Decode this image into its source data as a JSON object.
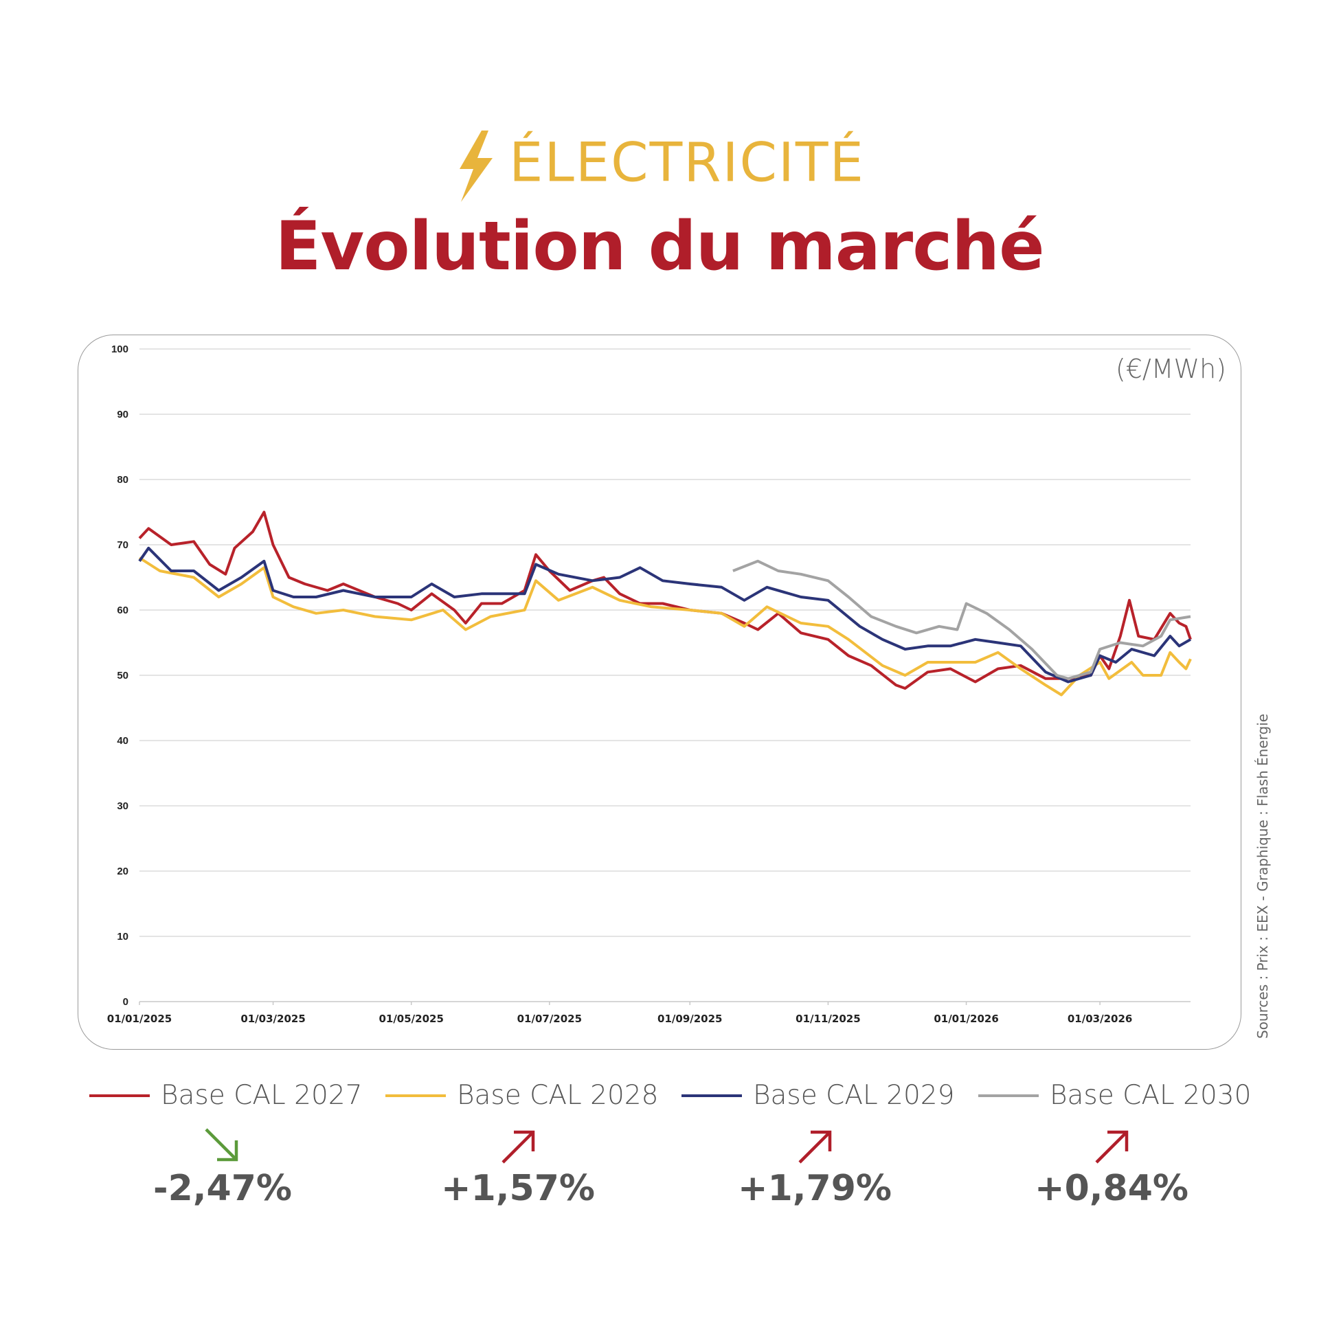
{
  "header": {
    "kicker": "ÉLECTRICITÉ",
    "title": "Évolution du marché",
    "kicker_icon": "lightning-bolt-icon"
  },
  "colors": {
    "title": "#b01e2a",
    "kicker": "#e8b43c",
    "down": "#5b9a3a",
    "up": "#b01e2a"
  },
  "source": "Sources : Prix : EEX - Graphique : Flash Énergie",
  "changes": [
    {
      "series": "Base CAL 2027",
      "value": "-2,47%",
      "direction": "down"
    },
    {
      "series": "Base CAL 2028",
      "value": "+1,57%",
      "direction": "up"
    },
    {
      "series": "Base CAL 2029",
      "value": "+1,79%",
      "direction": "up"
    },
    {
      "series": "Base CAL 2030",
      "value": "+0,84%",
      "direction": "up"
    }
  ],
  "chart_data": {
    "type": "line",
    "ylabel": "(€/MWh)",
    "ylim": [
      0,
      100
    ],
    "yticks": [
      "0",
      "10",
      "20",
      "30",
      "40",
      "50",
      "60",
      "70",
      "80",
      "90",
      "100"
    ],
    "xlim": [
      "2025-01-01",
      "2026-04-10"
    ],
    "xticks": [
      {
        "date": "2025-01-01",
        "label": "01/01/2025"
      },
      {
        "date": "2025-03-01",
        "label": "01/03/2025"
      },
      {
        "date": "2025-05-01",
        "label": "01/05/2025"
      },
      {
        "date": "2025-07-01",
        "label": "01/07/2025"
      },
      {
        "date": "2025-09-01",
        "label": "01/09/2025"
      },
      {
        "date": "2025-11-01",
        "label": "01/11/2025"
      },
      {
        "date": "2026-01-01",
        "label": "01/01/2026"
      },
      {
        "date": "2026-03-01",
        "label": "01/03/2026"
      }
    ],
    "grid": true,
    "legend": "bottom",
    "series": [
      {
        "name": "Base CAL 2027",
        "color": "#b8222a",
        "points": [
          [
            "2025-01-01",
            71
          ],
          [
            "2025-01-05",
            72.5
          ],
          [
            "2025-01-15",
            70
          ],
          [
            "2025-01-25",
            70.5
          ],
          [
            "2025-02-01",
            67
          ],
          [
            "2025-02-08",
            65.5
          ],
          [
            "2025-02-12",
            69.5
          ],
          [
            "2025-02-20",
            72
          ],
          [
            "2025-02-25",
            75
          ],
          [
            "2025-03-01",
            70
          ],
          [
            "2025-03-08",
            65
          ],
          [
            "2025-03-15",
            64
          ],
          [
            "2025-03-25",
            63
          ],
          [
            "2025-04-01",
            64
          ],
          [
            "2025-04-15",
            62
          ],
          [
            "2025-04-25",
            61
          ],
          [
            "2025-05-01",
            60
          ],
          [
            "2025-05-10",
            62.5
          ],
          [
            "2025-05-20",
            60
          ],
          [
            "2025-05-25",
            58
          ],
          [
            "2025-06-01",
            61
          ],
          [
            "2025-06-10",
            61
          ],
          [
            "2025-06-20",
            63
          ],
          [
            "2025-06-25",
            68.5
          ],
          [
            "2025-07-01",
            66
          ],
          [
            "2025-07-10",
            63
          ],
          [
            "2025-07-20",
            64.5
          ],
          [
            "2025-07-25",
            65
          ],
          [
            "2025-08-01",
            62.5
          ],
          [
            "2025-08-10",
            61
          ],
          [
            "2025-08-20",
            61
          ],
          [
            "2025-09-01",
            60
          ],
          [
            "2025-09-15",
            59.5
          ],
          [
            "2025-09-25",
            58
          ],
          [
            "2025-10-01",
            57
          ],
          [
            "2025-10-10",
            59.5
          ],
          [
            "2025-10-20",
            56.5
          ],
          [
            "2025-11-01",
            55.5
          ],
          [
            "2025-11-10",
            53
          ],
          [
            "2025-11-20",
            51.5
          ],
          [
            "2025-12-01",
            48.5
          ],
          [
            "2025-12-05",
            48
          ],
          [
            "2025-12-15",
            50.5
          ],
          [
            "2025-12-25",
            51
          ],
          [
            "2026-01-05",
            49
          ],
          [
            "2026-01-15",
            51
          ],
          [
            "2026-01-25",
            51.5
          ],
          [
            "2026-02-05",
            49.5
          ],
          [
            "2026-02-15",
            49.5
          ],
          [
            "2026-02-25",
            50
          ],
          [
            "2026-03-01",
            53
          ],
          [
            "2026-03-05",
            51
          ],
          [
            "2026-03-10",
            56
          ],
          [
            "2026-03-14",
            61.5
          ],
          [
            "2026-03-18",
            56
          ],
          [
            "2026-03-25",
            55.5
          ],
          [
            "2026-04-01",
            59.5
          ],
          [
            "2026-04-05",
            58
          ],
          [
            "2026-04-08",
            57.5
          ],
          [
            "2026-04-10",
            55.5
          ]
        ]
      },
      {
        "name": "Base CAL 2028",
        "color": "#f2bd3c",
        "points": [
          [
            "2025-01-01",
            68
          ],
          [
            "2025-01-10",
            66
          ],
          [
            "2025-01-25",
            65
          ],
          [
            "2025-02-05",
            62
          ],
          [
            "2025-02-15",
            64
          ],
          [
            "2025-02-25",
            66.5
          ],
          [
            "2025-03-01",
            62
          ],
          [
            "2025-03-10",
            60.5
          ],
          [
            "2025-03-20",
            59.5
          ],
          [
            "2025-04-01",
            60
          ],
          [
            "2025-04-15",
            59
          ],
          [
            "2025-05-01",
            58.5
          ],
          [
            "2025-05-15",
            60
          ],
          [
            "2025-05-25",
            57
          ],
          [
            "2025-06-05",
            59
          ],
          [
            "2025-06-20",
            60
          ],
          [
            "2025-06-25",
            64.5
          ],
          [
            "2025-07-05",
            61.5
          ],
          [
            "2025-07-20",
            63.5
          ],
          [
            "2025-08-01",
            61.5
          ],
          [
            "2025-08-15",
            60.5
          ],
          [
            "2025-09-01",
            60
          ],
          [
            "2025-09-15",
            59.5
          ],
          [
            "2025-09-25",
            57.5
          ],
          [
            "2025-10-05",
            60.5
          ],
          [
            "2025-10-20",
            58
          ],
          [
            "2025-11-01",
            57.5
          ],
          [
            "2025-11-10",
            55.5
          ],
          [
            "2025-11-25",
            51.5
          ],
          [
            "2025-12-05",
            50
          ],
          [
            "2025-12-15",
            52
          ],
          [
            "2025-12-25",
            52
          ],
          [
            "2026-01-05",
            52
          ],
          [
            "2026-01-15",
            53.5
          ],
          [
            "2026-01-25",
            51
          ],
          [
            "2026-02-05",
            48.5
          ],
          [
            "2026-02-12",
            47
          ],
          [
            "2026-02-20",
            50
          ],
          [
            "2026-03-01",
            52
          ],
          [
            "2026-03-05",
            49.5
          ],
          [
            "2026-03-15",
            52
          ],
          [
            "2026-03-20",
            50
          ],
          [
            "2026-03-28",
            50
          ],
          [
            "2026-04-01",
            53.5
          ],
          [
            "2026-04-05",
            52
          ],
          [
            "2026-04-08",
            51
          ],
          [
            "2026-04-10",
            52.5
          ]
        ]
      },
      {
        "name": "Base CAL 2029",
        "color": "#2b3478",
        "points": [
          [
            "2025-01-01",
            67.5
          ],
          [
            "2025-01-05",
            69.5
          ],
          [
            "2025-01-15",
            66
          ],
          [
            "2025-01-25",
            66
          ],
          [
            "2025-02-05",
            63
          ],
          [
            "2025-02-15",
            65
          ],
          [
            "2025-02-25",
            67.5
          ],
          [
            "2025-03-01",
            63
          ],
          [
            "2025-03-10",
            62
          ],
          [
            "2025-03-20",
            62
          ],
          [
            "2025-04-01",
            63
          ],
          [
            "2025-04-15",
            62
          ],
          [
            "2025-05-01",
            62
          ],
          [
            "2025-05-10",
            64
          ],
          [
            "2025-05-20",
            62
          ],
          [
            "2025-06-01",
            62.5
          ],
          [
            "2025-06-20",
            62.5
          ],
          [
            "2025-06-25",
            67
          ],
          [
            "2025-07-05",
            65.5
          ],
          [
            "2025-07-20",
            64.5
          ],
          [
            "2025-08-01",
            65
          ],
          [
            "2025-08-10",
            66.5
          ],
          [
            "2025-08-20",
            64.5
          ],
          [
            "2025-09-01",
            64
          ],
          [
            "2025-09-15",
            63.5
          ],
          [
            "2025-09-25",
            61.5
          ],
          [
            "2025-10-05",
            63.5
          ],
          [
            "2025-10-20",
            62
          ],
          [
            "2025-11-01",
            61.5
          ],
          [
            "2025-11-15",
            57.5
          ],
          [
            "2025-11-25",
            55.5
          ],
          [
            "2025-12-05",
            54
          ],
          [
            "2025-12-15",
            54.5
          ],
          [
            "2025-12-25",
            54.5
          ],
          [
            "2026-01-05",
            55.5
          ],
          [
            "2026-01-15",
            55
          ],
          [
            "2026-01-25",
            54.5
          ],
          [
            "2026-02-05",
            50.5
          ],
          [
            "2026-02-15",
            49
          ],
          [
            "2026-02-25",
            50
          ],
          [
            "2026-03-01",
            53
          ],
          [
            "2026-03-08",
            52
          ],
          [
            "2026-03-15",
            54
          ],
          [
            "2026-03-25",
            53
          ],
          [
            "2026-04-01",
            56
          ],
          [
            "2026-04-05",
            54.5
          ],
          [
            "2026-04-10",
            55.5
          ]
        ]
      },
      {
        "name": "Base CAL 2030",
        "color": "#a3a3a3",
        "points": [
          [
            "2025-09-20",
            66
          ],
          [
            "2025-10-01",
            67.5
          ],
          [
            "2025-10-10",
            66
          ],
          [
            "2025-10-20",
            65.5
          ],
          [
            "2025-11-01",
            64.5
          ],
          [
            "2025-11-10",
            62
          ],
          [
            "2025-11-20",
            59
          ],
          [
            "2025-12-01",
            57.5
          ],
          [
            "2025-12-10",
            56.5
          ],
          [
            "2025-12-20",
            57.5
          ],
          [
            "2025-12-28",
            57
          ],
          [
            "2026-01-01",
            61
          ],
          [
            "2026-01-10",
            59.5
          ],
          [
            "2026-01-20",
            57
          ],
          [
            "2026-01-30",
            54
          ],
          [
            "2026-02-10",
            50
          ],
          [
            "2026-02-15",
            49.5
          ],
          [
            "2026-02-25",
            50.5
          ],
          [
            "2026-03-01",
            54
          ],
          [
            "2026-03-10",
            55
          ],
          [
            "2026-03-20",
            54.5
          ],
          [
            "2026-03-28",
            56
          ],
          [
            "2026-04-01",
            58.5
          ],
          [
            "2026-04-10",
            59
          ]
        ]
      }
    ]
  }
}
